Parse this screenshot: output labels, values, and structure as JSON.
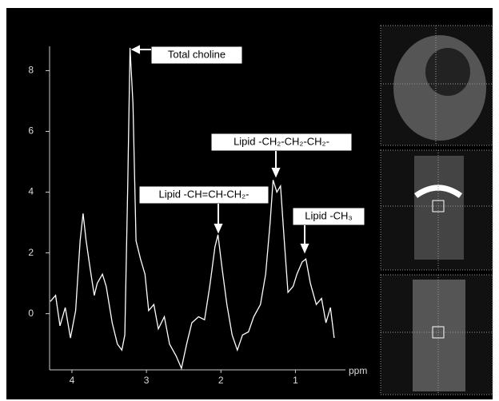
{
  "chart_data": {
    "type": "line",
    "x_label": "ppm",
    "x": [
      4.29,
      4.22,
      4.16,
      4.09,
      4.02,
      3.95,
      3.89,
      3.85,
      3.81,
      3.75,
      3.7,
      3.66,
      3.59,
      3.54,
      3.46,
      3.39,
      3.33,
      3.29,
      3.25,
      3.22,
      3.18,
      3.14,
      3.08,
      3.02,
      2.97,
      2.9,
      2.84,
      2.76,
      2.69,
      2.6,
      2.53,
      2.46,
      2.39,
      2.3,
      2.22,
      2.15,
      2.08,
      2.04,
      1.99,
      1.92,
      1.85,
      1.78,
      1.71,
      1.63,
      1.56,
      1.47,
      1.4,
      1.34,
      1.3,
      1.25,
      1.2,
      1.15,
      1.1,
      1.03,
      0.98,
      0.91,
      0.86,
      0.8,
      0.72,
      0.65,
      0.59,
      0.53,
      0.48
    ],
    "values": [
      0.4,
      0.6,
      -0.4,
      0.2,
      -0.8,
      0.1,
      2.4,
      3.3,
      2.4,
      1.4,
      0.6,
      1.0,
      1.3,
      0.9,
      -0.3,
      -1.0,
      -1.2,
      -0.7,
      4.3,
      8.75,
      6.9,
      2.4,
      1.8,
      1.3,
      0.1,
      0.3,
      -0.5,
      -0.1,
      -1.0,
      -1.4,
      -1.8,
      -1.0,
      -0.3,
      -0.1,
      -0.2,
      0.9,
      2.2,
      2.6,
      1.6,
      0.3,
      -0.7,
      -1.2,
      -0.7,
      -0.6,
      -0.1,
      0.3,
      1.3,
      3.0,
      4.4,
      4.0,
      4.2,
      2.4,
      0.7,
      0.9,
      1.3,
      1.7,
      1.8,
      1.0,
      0.3,
      0.5,
      -0.3,
      0.2,
      -0.8
    ],
    "color": "#ffffff",
    "xlim": [
      4.3,
      0.35
    ],
    "ylim": [
      -1.85,
      8.8
    ],
    "xticks": [
      4,
      3,
      2,
      1
    ],
    "yticks": [
      0,
      2,
      4,
      6,
      8
    ],
    "annotations": [
      "Total choline",
      "Lipid -CH=CH-CH₂-",
      "Lipid -CH₂-CH₂-CH₂-",
      "Lipid -CH₃"
    ]
  }
}
